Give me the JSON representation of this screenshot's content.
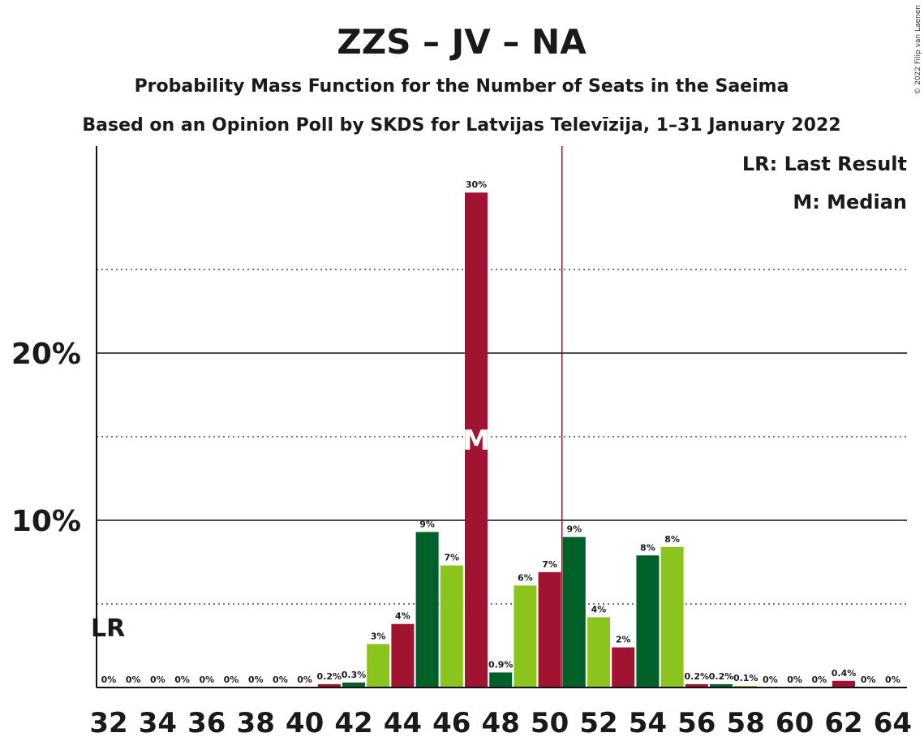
{
  "chart_data": {
    "type": "bar",
    "title": "ZZS – JV – NA",
    "subtitle1": "Probability Mass Function for the Number of Seats in the Saeima",
    "subtitle2": "Based on an Opinion Poll by SKDS for Latvijas Televīzija, 1–31 January 2022",
    "copyright": "© 2022 Filip van Laenen",
    "legend": {
      "lr": "LR: Last Result",
      "median": "M: Median",
      "placement": "top-right"
    },
    "last_result": {
      "seats": 32,
      "label": "LR"
    },
    "median": {
      "seats": 47,
      "label": "M"
    },
    "majority_line": 50.5,
    "ylim": [
      0,
      32
    ],
    "y_major": [
      {
        "value": 10,
        "label": "10%"
      },
      {
        "value": 20,
        "label": "20%"
      }
    ],
    "y_minor": [
      5,
      15,
      25
    ],
    "x_tick_labels": [
      "32",
      "34",
      "36",
      "38",
      "40",
      "42",
      "44",
      "46",
      "48",
      "50",
      "52",
      "54",
      "56",
      "58",
      "60",
      "62",
      "64"
    ],
    "colors": {
      "red": "#a01432",
      "green": "#00602a",
      "lime": "#8ac41c",
      "majority": "#7a1a2a"
    },
    "bars": [
      {
        "seats": 32,
        "value": 0,
        "label": "0%",
        "color": "red"
      },
      {
        "seats": 33,
        "value": 0,
        "label": "0%",
        "color": "green"
      },
      {
        "seats": 34,
        "value": 0,
        "label": "0%",
        "color": "lime"
      },
      {
        "seats": 35,
        "value": 0,
        "label": "0%",
        "color": "red"
      },
      {
        "seats": 36,
        "value": 0,
        "label": "0%",
        "color": "green"
      },
      {
        "seats": 37,
        "value": 0,
        "label": "0%",
        "color": "lime"
      },
      {
        "seats": 38,
        "value": 0,
        "label": "0%",
        "color": "red"
      },
      {
        "seats": 39,
        "value": 0,
        "label": "0%",
        "color": "green"
      },
      {
        "seats": 40,
        "value": 0,
        "label": "0%",
        "color": "lime"
      },
      {
        "seats": 41,
        "value": 0.2,
        "label": "0.2%",
        "color": "red"
      },
      {
        "seats": 42,
        "value": 0.3,
        "label": "0.3%",
        "color": "green"
      },
      {
        "seats": 43,
        "value": 2.6,
        "label": "3%",
        "color": "lime"
      },
      {
        "seats": 44,
        "value": 3.8,
        "label": "4%",
        "color": "red"
      },
      {
        "seats": 45,
        "value": 9.3,
        "label": "9%",
        "color": "green"
      },
      {
        "seats": 46,
        "value": 7.3,
        "label": "7%",
        "color": "lime"
      },
      {
        "seats": 47,
        "value": 29.6,
        "label": "30%",
        "color": "red"
      },
      {
        "seats": 48,
        "value": 0.9,
        "label": "0.9%",
        "color": "green"
      },
      {
        "seats": 49,
        "value": 6.1,
        "label": "6%",
        "color": "lime"
      },
      {
        "seats": 50,
        "value": 6.9,
        "label": "7%",
        "color": "red"
      },
      {
        "seats": 51,
        "value": 9.0,
        "label": "9%",
        "color": "green"
      },
      {
        "seats": 52,
        "value": 4.2,
        "label": "4%",
        "color": "lime"
      },
      {
        "seats": 53,
        "value": 2.4,
        "label": "2%",
        "color": "red"
      },
      {
        "seats": 54,
        "value": 7.9,
        "label": "8%",
        "color": "green"
      },
      {
        "seats": 55,
        "value": 8.4,
        "label": "8%",
        "color": "lime"
      },
      {
        "seats": 56,
        "value": 0.2,
        "label": "0.2%",
        "color": "red"
      },
      {
        "seats": 57,
        "value": 0.2,
        "label": "0.2%",
        "color": "green"
      },
      {
        "seats": 58,
        "value": 0.1,
        "label": "0.1%",
        "color": "lime"
      },
      {
        "seats": 59,
        "value": 0,
        "label": "0%",
        "color": "red"
      },
      {
        "seats": 60,
        "value": 0,
        "label": "0%",
        "color": "green"
      },
      {
        "seats": 61,
        "value": 0,
        "label": "0%",
        "color": "lime"
      },
      {
        "seats": 62,
        "value": 0.4,
        "label": "0.4%",
        "color": "red"
      },
      {
        "seats": 63,
        "value": 0,
        "label": "0%",
        "color": "green"
      },
      {
        "seats": 64,
        "value": 0,
        "label": "0%",
        "color": "lime"
      }
    ]
  }
}
